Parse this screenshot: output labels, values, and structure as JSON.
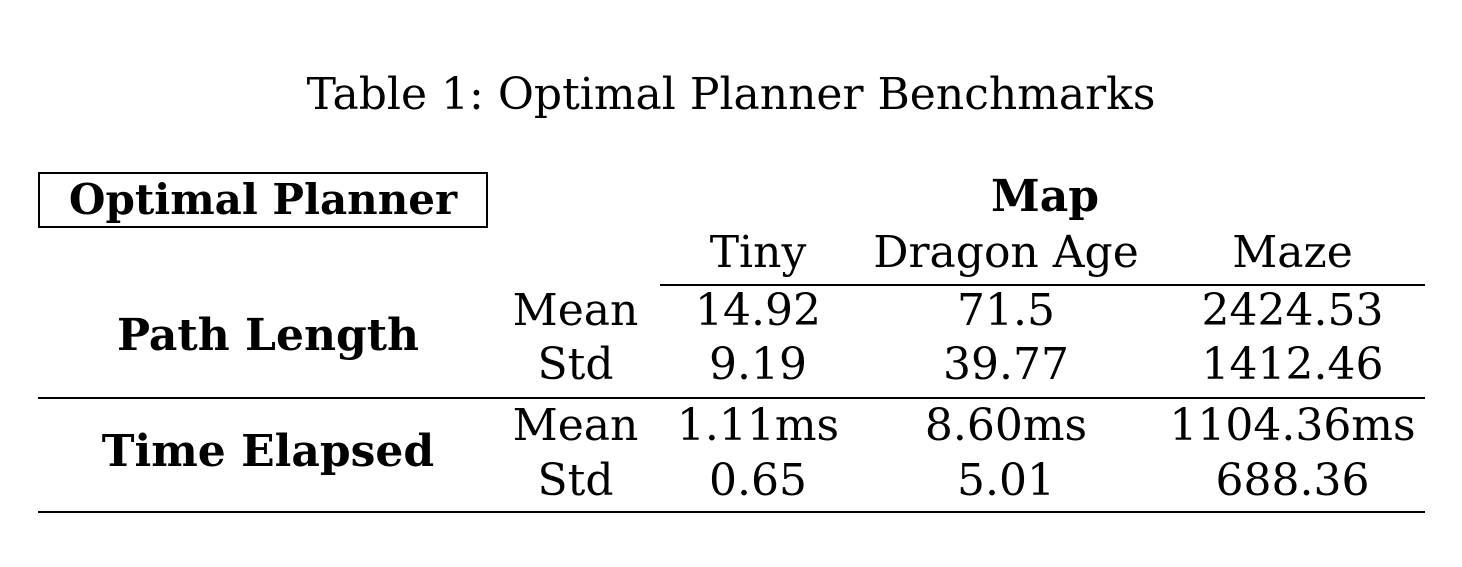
{
  "caption": "Table 1: Optimal Planner Benchmarks",
  "table": {
    "corner_label": "Optimal Planner",
    "group_header": "Map",
    "columns": [
      "Tiny",
      "Dragon Age",
      "Maze"
    ],
    "rows": [
      {
        "metric": "Path Length",
        "stats": [
          {
            "stat": "Mean",
            "values": [
              "14.92",
              "71.5",
              "2424.53"
            ]
          },
          {
            "stat": "Std",
            "values": [
              "9.19",
              "39.77",
              "1412.46"
            ]
          }
        ]
      },
      {
        "metric": "Time Elapsed",
        "stats": [
          {
            "stat": "Mean",
            "values": [
              "1.11ms",
              "8.60ms",
              "1104.36ms"
            ]
          },
          {
            "stat": "Std",
            "values": [
              "0.65",
              "5.01",
              "688.36"
            ]
          }
        ]
      }
    ]
  }
}
